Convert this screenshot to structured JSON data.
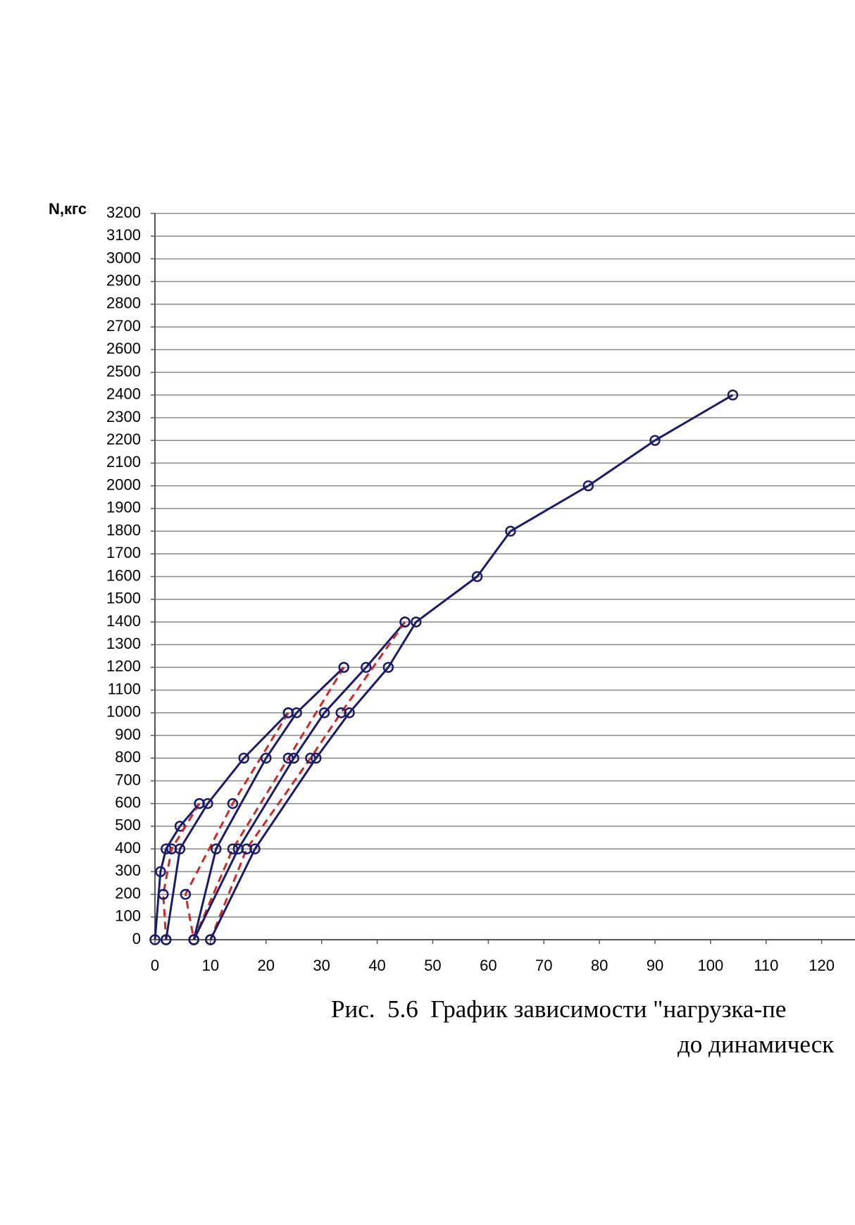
{
  "chart_data": {
    "type": "line",
    "y_label": "N,кгс",
    "xlim": [
      0,
      126
    ],
    "ylim": [
      0,
      3200
    ],
    "xticks": [
      0,
      10,
      20,
      30,
      40,
      50,
      60,
      70,
      80,
      90,
      100,
      110,
      120
    ],
    "yticks": [
      0,
      100,
      200,
      300,
      400,
      500,
      600,
      700,
      800,
      900,
      1000,
      1100,
      1200,
      1300,
      1400,
      1500,
      1600,
      1700,
      1800,
      1900,
      2000,
      2100,
      2200,
      2300,
      2400,
      2500,
      2600,
      2700,
      2800,
      2900,
      3000,
      3100,
      3200
    ],
    "grid": true,
    "series": [
      {
        "color": "#1b1b6b",
        "dashed": false,
        "x": [
          0,
          1,
          2,
          4.5,
          8
        ],
        "values": [
          0,
          300,
          400,
          500,
          600
        ]
      },
      {
        "color": "#cc2a2a",
        "dashed": true,
        "x": [
          8,
          3,
          1.5,
          2
        ],
        "values": [
          600,
          400,
          200,
          0
        ]
      },
      {
        "color": "#1b1b6b",
        "dashed": false,
        "x": [
          2,
          4.5,
          9.5,
          16,
          24
        ],
        "values": [
          0,
          400,
          600,
          800,
          1000
        ]
      },
      {
        "color": "#cc2a2a",
        "dashed": true,
        "x": [
          24,
          14,
          5.5,
          7
        ],
        "values": [
          1000,
          600,
          200,
          0
        ]
      },
      {
        "color": "#1b1b6b",
        "dashed": false,
        "x": [
          7,
          11,
          20,
          25.5,
          34
        ],
        "values": [
          0,
          400,
          800,
          1000,
          1200
        ]
      },
      {
        "color": "#cc2a2a",
        "dashed": true,
        "x": [
          34,
          24,
          14,
          7
        ],
        "values": [
          1200,
          800,
          400,
          0
        ]
      },
      {
        "color": "#1b1b6b",
        "dashed": false,
        "x": [
          7,
          15,
          25,
          30.5,
          38,
          45
        ],
        "values": [
          0,
          400,
          800,
          1000,
          1200,
          1400
        ]
      },
      {
        "color": "#cc2a2a",
        "dashed": true,
        "x": [
          45,
          33.5,
          28,
          16.5,
          10
        ],
        "values": [
          1400,
          1000,
          800,
          400,
          0
        ]
      },
      {
        "color": "#1b1b6b",
        "dashed": false,
        "x": [
          10,
          18,
          29,
          35,
          42,
          47,
          58,
          64,
          78,
          90,
          104
        ],
        "values": [
          0,
          400,
          800,
          1000,
          1200,
          1400,
          1600,
          1800,
          2000,
          2200,
          2400
        ]
      }
    ]
  },
  "caption": [
    "Рис.  5.6  График зависимости \"нагрузка-пе",
    "до динамическ"
  ]
}
